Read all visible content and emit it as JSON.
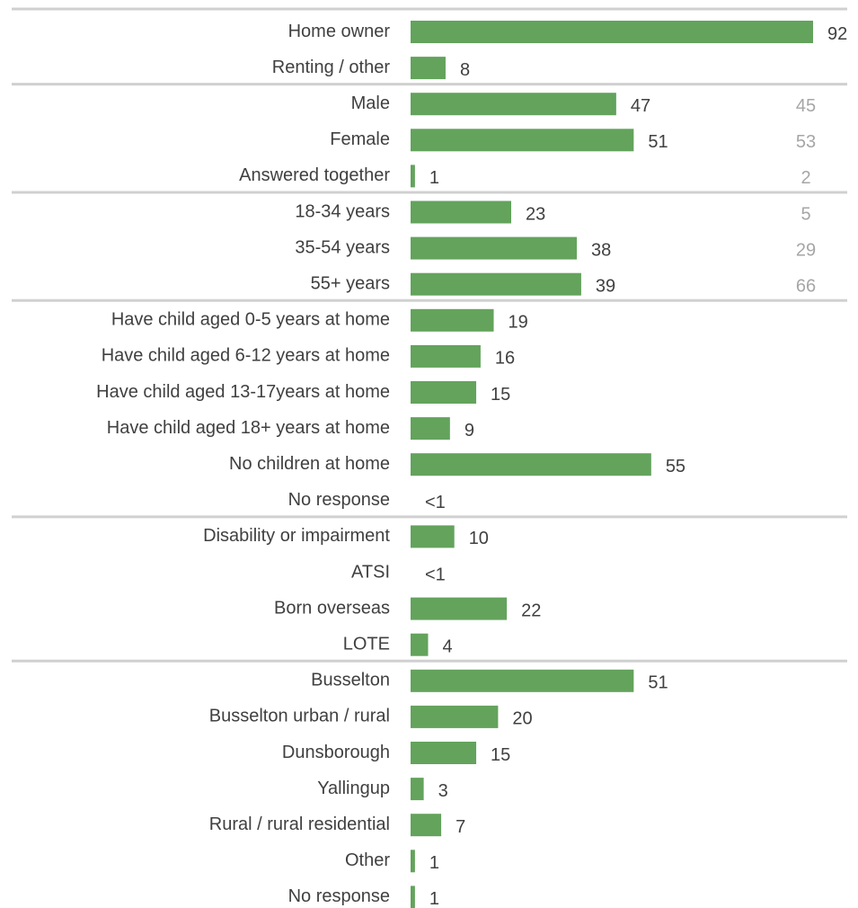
{
  "chart_data": {
    "type": "bar",
    "orientation": "horizontal",
    "colors": {
      "bar": "#63a35c",
      "separator": "#d0d0d0",
      "value_text": "#404040",
      "comparison_text": "#a6a6a6"
    },
    "groups": [
      {
        "items": [
          {
            "label": "Home owner",
            "value": 92,
            "value_label": "92"
          },
          {
            "label": "Renting / other",
            "value": 8,
            "value_label": "8"
          }
        ]
      },
      {
        "items": [
          {
            "label": "Male",
            "value": 47,
            "value_label": "47",
            "comparison": "45"
          },
          {
            "label": "Female",
            "value": 51,
            "value_label": "51",
            "comparison": "53"
          },
          {
            "label": "Answered together",
            "value": 1,
            "value_label": "1",
            "comparison": "2"
          }
        ]
      },
      {
        "items": [
          {
            "label": "18-34 years",
            "value": 23,
            "value_label": "23",
            "comparison": "5"
          },
          {
            "label": "35-54 years",
            "value": 38,
            "value_label": "38",
            "comparison": "29"
          },
          {
            "label": "55+ years",
            "value": 39,
            "value_label": "39",
            "comparison": "66"
          }
        ]
      },
      {
        "items": [
          {
            "label": "Have child aged 0-5 years at home",
            "value": 19,
            "value_label": "19"
          },
          {
            "label": "Have child aged 6-12 years at home",
            "value": 16,
            "value_label": "16"
          },
          {
            "label": "Have child aged 13-17years at home",
            "value": 15,
            "value_label": "15"
          },
          {
            "label": "Have child aged 18+ years at home",
            "value": 9,
            "value_label": "9"
          },
          {
            "label": "No children at home",
            "value": 55,
            "value_label": "55"
          },
          {
            "label": "No response",
            "value": 0,
            "value_label": "<1"
          }
        ]
      },
      {
        "items": [
          {
            "label": "Disability or impairment",
            "value": 10,
            "value_label": "10"
          },
          {
            "label": "ATSI",
            "value": 0,
            "value_label": "<1"
          },
          {
            "label": "Born overseas",
            "value": 22,
            "value_label": "22"
          },
          {
            "label": "LOTE",
            "value": 4,
            "value_label": "4"
          }
        ]
      },
      {
        "items": [
          {
            "label": "Busselton",
            "value": 51,
            "value_label": "51"
          },
          {
            "label": "Busselton urban / rural",
            "value": 20,
            "value_label": "20"
          },
          {
            "label": "Dunsborough",
            "value": 15,
            "value_label": "15"
          },
          {
            "label": "Yallingup",
            "value": 3,
            "value_label": "3"
          },
          {
            "label": "Rural / rural residential",
            "value": 7,
            "value_label": "7"
          },
          {
            "label": "Other",
            "value": 1,
            "value_label": "1"
          },
          {
            "label": "No response",
            "value": 1,
            "value_label": "1"
          }
        ]
      }
    ],
    "xlim": [
      0,
      92
    ]
  }
}
